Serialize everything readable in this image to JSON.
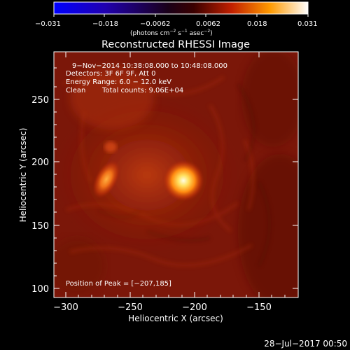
{
  "colorbar": {
    "ticks": [
      "−0.031",
      "−0.018",
      "−0.0062",
      "0.0062",
      "0.018",
      "0.031"
    ],
    "units_prefix": "(photons cm",
    "units_exp1": "−2",
    "units_mid1": " s",
    "units_exp2": "−1",
    "units_mid2": " asec",
    "units_exp3": "−2",
    "units_suffix": ")"
  },
  "title": "Reconstructed RHESSI Image",
  "annotations": {
    "time": "9−Nov−2014 10:38:08.000 to 10:48:08.000",
    "detectors": "Detectors: 3F 6F 9F, Att 0",
    "energy": "Energy Range: 6.0 − 12.0 keV",
    "clean": "Clean",
    "counts": "Total counts: 9.06E+04",
    "peak": "Position of Peak = [−207,185]"
  },
  "axes": {
    "xlabel": "Heliocentric X (arcsec)",
    "ylabel": "Heliocentric Y (arcsec)",
    "xticks": [
      "−300",
      "−250",
      "−200",
      "−150"
    ],
    "yticks": [
      "250",
      "200",
      "150",
      "100"
    ]
  },
  "footer": {
    "date": "28−Jul−2017 00:50"
  },
  "colors": {
    "background": "#000000",
    "map_base": "#8a1a0a",
    "source_core": "#fffbd8"
  }
}
